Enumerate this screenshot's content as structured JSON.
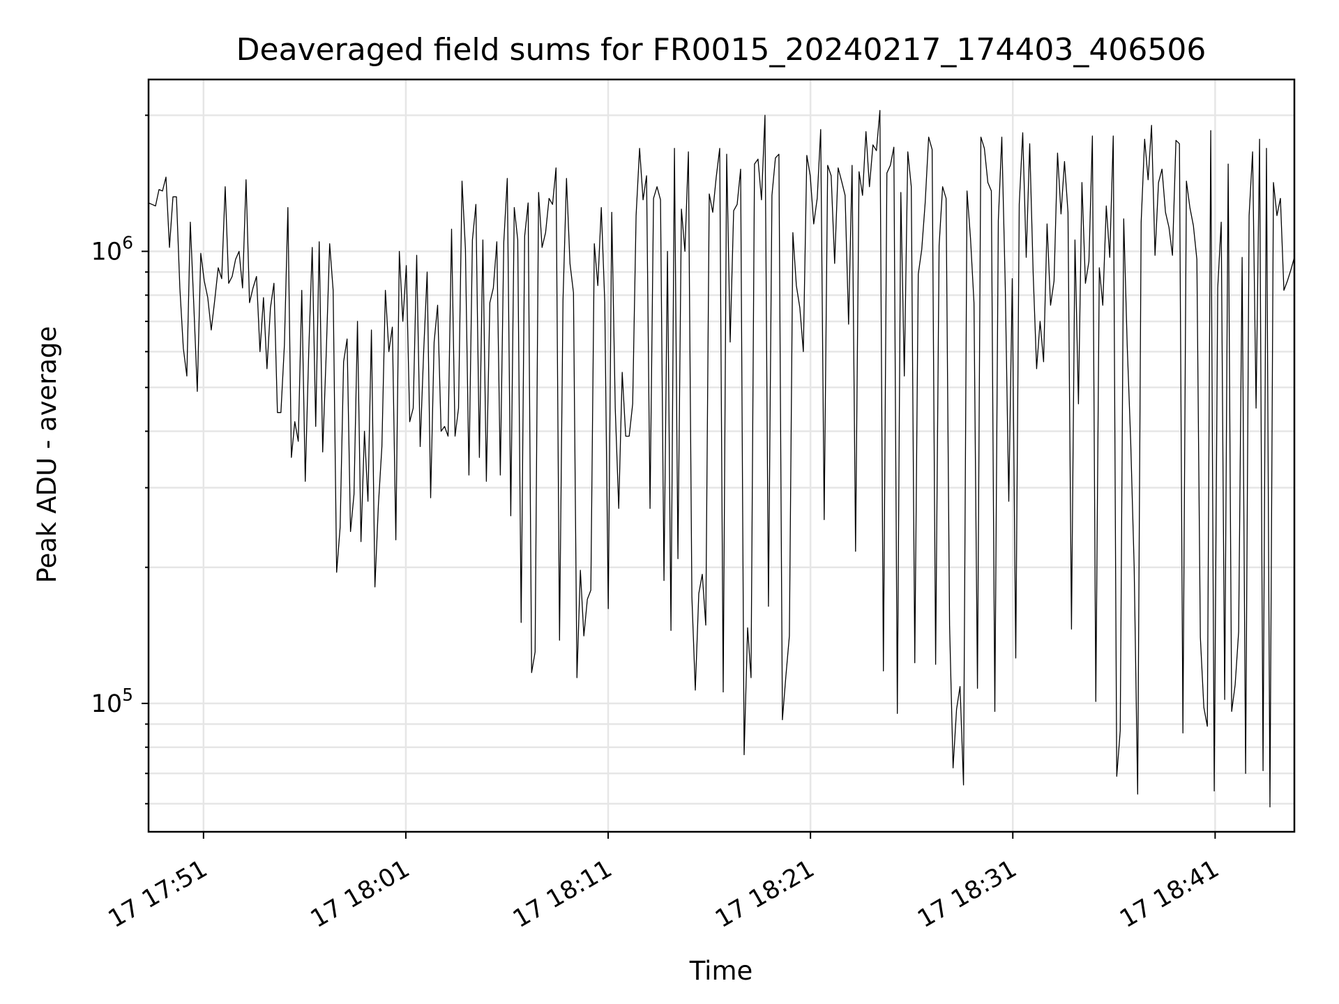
{
  "chart_data": {
    "type": "line",
    "title": "Deaveraged field sums for FR0015_20240217_174403_406506",
    "xlabel": "Time",
    "ylabel": "Peak ADU - average",
    "yscale": "log",
    "ylim": [
      52000,
      2400000
    ],
    "xlim": [
      "2024-02-17 17:48:17",
      "2024-02-17 18:44:55"
    ],
    "grid": true,
    "x_ticks": [
      {
        "value": "2024-02-17 17:51:00",
        "label": "17 17:51"
      },
      {
        "value": "2024-02-17 18:01:00",
        "label": "17 18:01"
      },
      {
        "value": "2024-02-17 18:11:00",
        "label": "17 18:11"
      },
      {
        "value": "2024-02-17 18:21:00",
        "label": "17 18:21"
      },
      {
        "value": "2024-02-17 18:31:00",
        "label": "17 18:31"
      },
      {
        "value": "2024-02-17 18:41:00",
        "label": "17 18:41"
      }
    ],
    "y_ticks": [
      {
        "value": 100000,
        "base": "10",
        "exp": "5"
      },
      {
        "value": 1000000,
        "base": "10",
        "exp": "6"
      }
    ],
    "series": [
      {
        "color": "#000000",
        "x_start": "2024-02-17 17:48:17",
        "x_end": "2024-02-17 18:44:55",
        "values": [
          1280000,
          1270000,
          1260000,
          1370000,
          1360000,
          1460000,
          1020000,
          1320000,
          1320000,
          830000,
          610000,
          530000,
          1160000,
          760000,
          490000,
          990000,
          860000,
          790000,
          670000,
          780000,
          920000,
          870000,
          1390000,
          850000,
          880000,
          960000,
          1000000,
          830000,
          1440000,
          770000,
          830000,
          880000,
          600000,
          790000,
          550000,
          750000,
          850000,
          440000,
          440000,
          620000,
          1250000,
          350000,
          420000,
          380000,
          820000,
          310000,
          600000,
          1020000,
          410000,
          1050000,
          360000,
          590000,
          1040000,
          820000,
          195000,
          245000,
          570000,
          640000,
          240000,
          290000,
          700000,
          228000,
          400000,
          280000,
          670000,
          181000,
          275000,
          370000,
          820000,
          600000,
          680000,
          230000,
          1000000,
          700000,
          930000,
          420000,
          450000,
          980000,
          370000,
          600000,
          900000,
          285000,
          630000,
          760000,
          400000,
          410000,
          390000,
          1120000,
          390000,
          450000,
          1430000,
          1010000,
          320000,
          1060000,
          1270000,
          350000,
          1060000,
          310000,
          770000,
          830000,
          1050000,
          320000,
          1050000,
          1450000,
          260000,
          1250000,
          1060000,
          151000,
          1080000,
          1280000,
          117000,
          130000,
          1350000,
          1020000,
          1100000,
          1310000,
          1270000,
          1530000,
          138000,
          780000,
          1450000,
          940000,
          810000,
          114000,
          197000,
          141000,
          170000,
          178000,
          1040000,
          840000,
          1250000,
          770000,
          162000,
          1220000,
          450000,
          270000,
          540000,
          390000,
          390000,
          460000,
          1200000,
          1690000,
          1300000,
          1470000,
          270000,
          1310000,
          1390000,
          1300000,
          187000,
          1000000,
          145000,
          1690000,
          209000,
          1240000,
          1000000,
          1660000,
          172000,
          107000,
          175000,
          193000,
          149000,
          1340000,
          1220000,
          1460000,
          1690000,
          106000,
          1640000,
          630000,
          1230000,
          1270000,
          1520000,
          77000,
          147000,
          114000,
          1560000,
          1600000,
          1300000,
          2000000,
          164000,
          1330000,
          1610000,
          1640000,
          92000,
          115000,
          141000,
          1100000,
          840000,
          750000,
          600000,
          1630000,
          1470000,
          1150000,
          1310000,
          1860000,
          255000,
          1550000,
          1470000,
          940000,
          1530000,
          1430000,
          1330000,
          690000,
          1550000,
          217000,
          1500000,
          1330000,
          1840000,
          1390000,
          1720000,
          1670000,
          2050000,
          118000,
          1490000,
          1550000,
          1700000,
          95000,
          1350000,
          530000,
          1660000,
          1390000,
          123000,
          890000,
          1010000,
          1280000,
          1790000,
          1680000,
          122000,
          1030000,
          1390000,
          1310000,
          149000,
          72000,
          97000,
          109000,
          66000,
          1360000,
          1070000,
          770000,
          108000,
          1790000,
          1690000,
          1420000,
          1360000,
          96000,
          1170000,
          1790000,
          830000,
          280000,
          870000,
          126000,
          1270000,
          1830000,
          970000,
          1730000,
          890000,
          550000,
          700000,
          570000,
          1150000,
          760000,
          860000,
          1650000,
          1210000,
          1580000,
          1220000,
          146000,
          1060000,
          460000,
          1420000,
          850000,
          950000,
          1800000,
          101000,
          920000,
          760000,
          1260000,
          970000,
          1800000,
          69000,
          87000,
          1180000,
          620000,
          380000,
          200000,
          63000,
          1160000,
          1770000,
          1440000,
          1900000,
          980000,
          1420000,
          1520000,
          1220000,
          1130000,
          980000,
          1760000,
          1730000,
          86000,
          1430000,
          1250000,
          1140000,
          960000,
          140000,
          98000,
          89000,
          1850000,
          64000,
          830000,
          1160000,
          102000,
          1560000,
          96000,
          110000,
          144000,
          970000,
          70000,
          1200000,
          1660000,
          450000,
          1770000,
          71000,
          1690000,
          59000,
          1420000,
          1200000,
          1310000,
          820000,
          860000,
          910000,
          970000
        ]
      }
    ]
  }
}
